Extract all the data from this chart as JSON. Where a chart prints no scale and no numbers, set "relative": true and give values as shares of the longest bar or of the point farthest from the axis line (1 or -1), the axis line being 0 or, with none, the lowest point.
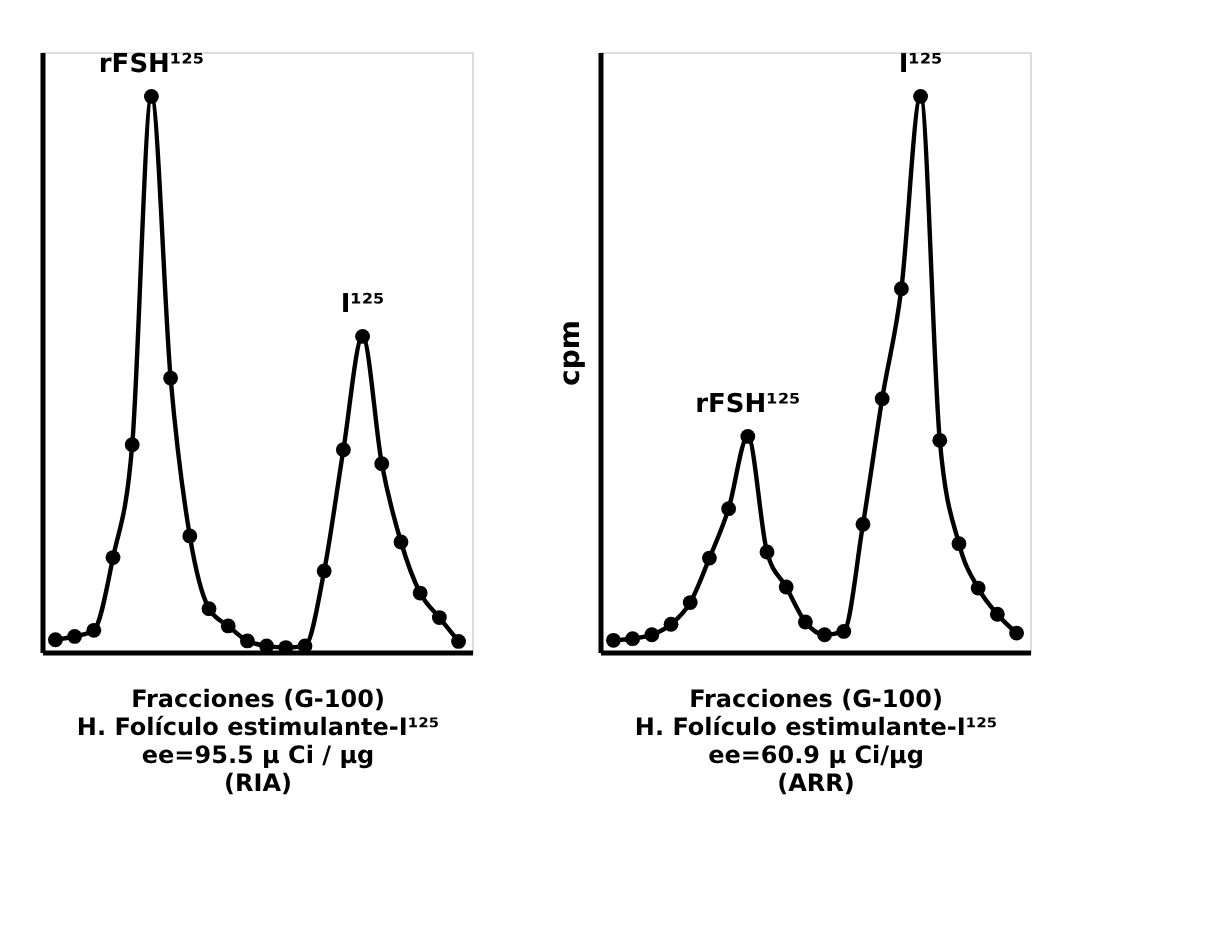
{
  "chart_data": [
    {
      "type": "line",
      "relative": true,
      "marker": "circle",
      "line_style": "solid",
      "tick_labels": false,
      "xlabel": "Fracciones (G-100)\nH. Folículo estimulante-I¹²⁵\nee=95.5 µ Ci / µg\n(RIA)",
      "categories": [
        null,
        null,
        null,
        null,
        null,
        null,
        null,
        null,
        null,
        null,
        null,
        null,
        null,
        null,
        null,
        null,
        null,
        null,
        null,
        null,
        null,
        null
      ],
      "series": [
        {
          "color": "#000000",
          "values": [
            0.022,
            0.028,
            0.039,
            0.17,
            0.373,
            1,
            0.493,
            0.209,
            0.078,
            0.047,
            0.02,
            0.011,
            0.008,
            0.011,
            0.146,
            0.364,
            0.568,
            0.339,
            0.198,
            0.106,
            0.062,
            0.019
          ]
        }
      ],
      "annotations": [
        {
          "text": "rFSH¹²⁵",
          "y": 1
        },
        {
          "text": "I¹²⁵",
          "y": 0.568
        }
      ]
    },
    {
      "type": "line",
      "relative": true,
      "marker": "circle",
      "line_style": "solid",
      "tick_labels": false,
      "ylabel": "cpm",
      "xlabel": "Fracciones (G-100)\nH. Folículo estimulante-I¹²⁵\nee=60.9 µ Ci/µg\n(ARR)",
      "categories": [
        null,
        null,
        null,
        null,
        null,
        null,
        null,
        null,
        null,
        null,
        null,
        null,
        null,
        null,
        null,
        null,
        null,
        null,
        null,
        null,
        null,
        null
      ],
      "series": [
        {
          "color": "#000000",
          "values": [
            0.021,
            0.024,
            0.031,
            0.05,
            0.089,
            0.169,
            0.258,
            0.388,
            0.18,
            0.117,
            0.054,
            0.031,
            0.037,
            0.23,
            0.456,
            0.654,
            1,
            0.381,
            0.195,
            0.115,
            0.068,
            0.034
          ]
        }
      ],
      "annotations": [
        {
          "text": "rFSH¹²⁵",
          "y": 0.388
        },
        {
          "text": "I¹²⁵",
          "y": 1
        }
      ]
    }
  ]
}
